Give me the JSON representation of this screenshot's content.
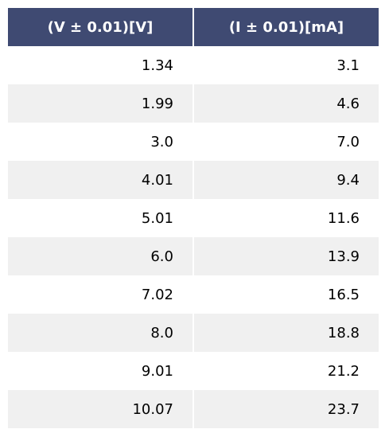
{
  "chart_data": {
    "type": "table",
    "columns": [
      "(V ± 0.01)[V]",
      "(I ± 0.01)[mA]"
    ],
    "rows": [
      [
        "1.34",
        "3.1"
      ],
      [
        "1.99",
        "4.6"
      ],
      [
        "3.0",
        "7.0"
      ],
      [
        "4.01",
        "9.4"
      ],
      [
        "5.01",
        "11.6"
      ],
      [
        "6.0",
        "13.9"
      ],
      [
        "7.02",
        "16.5"
      ],
      [
        "8.0",
        "18.8"
      ],
      [
        "9.01",
        "21.2"
      ],
      [
        "10.07",
        "23.7"
      ]
    ],
    "colors": {
      "header_background": "#3f4a72",
      "header_text": "#ffffff",
      "stripe": "#f0f0f0"
    }
  }
}
